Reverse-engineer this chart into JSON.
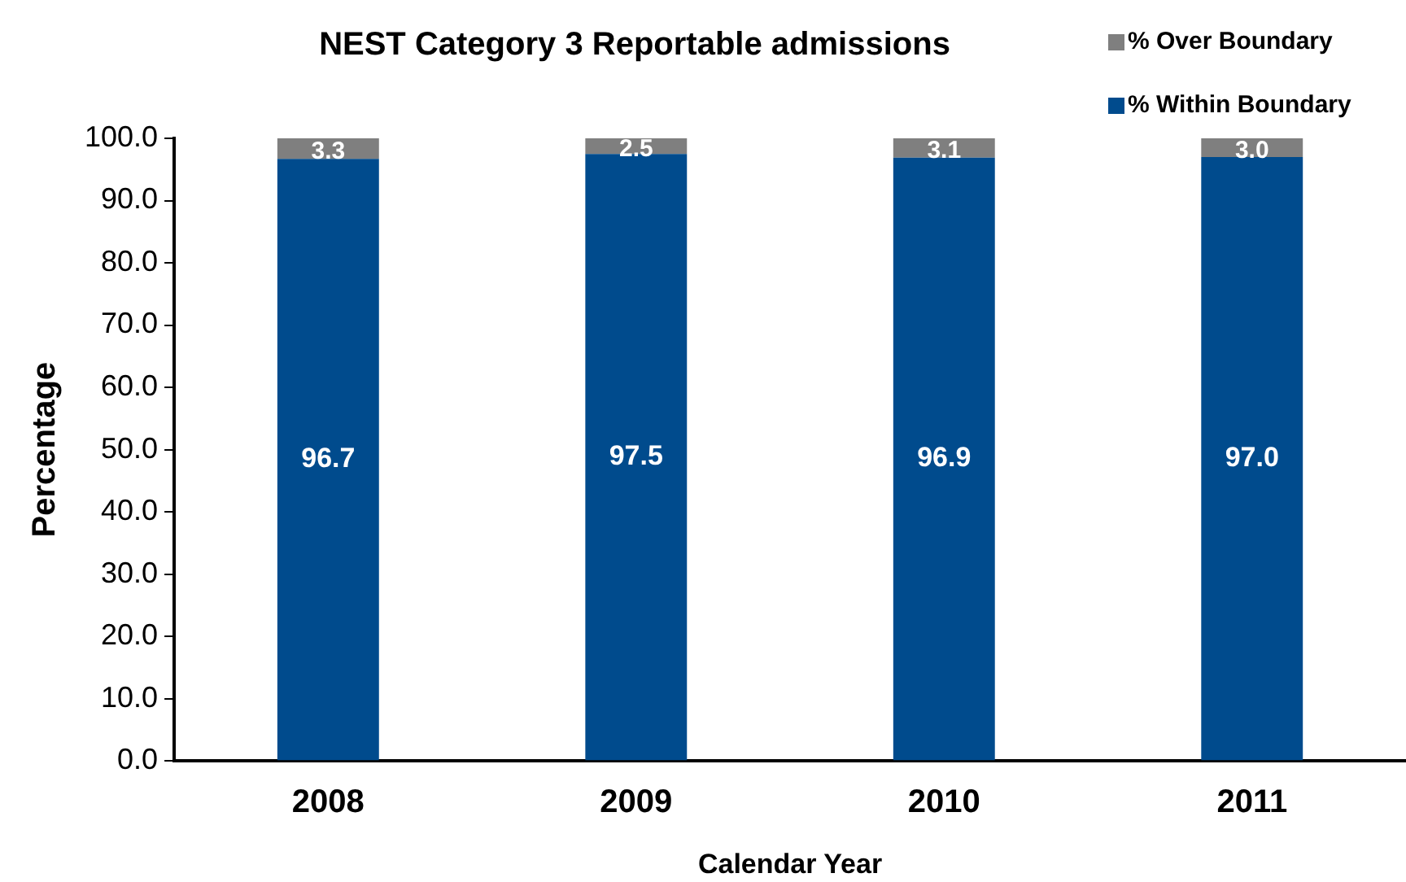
{
  "chart_data": {
    "type": "bar",
    "title": "NEST Category 3 Reportable admissions",
    "xlabel": "Calendar Year",
    "ylabel": "Percentage",
    "categories": [
      "2008",
      "2009",
      "2010",
      "2011"
    ],
    "series": [
      {
        "name": "% Within Boundary",
        "color": "#004b8d",
        "values": [
          96.7,
          97.5,
          96.9,
          97.0
        ],
        "value_labels": [
          "96.7",
          "97.5",
          "96.9",
          "97.0"
        ]
      },
      {
        "name": "% Over Boundary",
        "color": "#7f7f7f",
        "values": [
          3.3,
          2.5,
          3.1,
          3.0
        ],
        "value_labels": [
          "3.3",
          "2.5",
          "3.1",
          "3.0"
        ]
      }
    ],
    "stacked": true,
    "ylim": [
      0,
      100
    ],
    "yticks": [
      {
        "value": 0,
        "label": "0.0"
      },
      {
        "value": 10,
        "label": "10.0"
      },
      {
        "value": 20,
        "label": "20.0"
      },
      {
        "value": 30,
        "label": "30.0"
      },
      {
        "value": 40,
        "label": "40.0"
      },
      {
        "value": 50,
        "label": "50.0"
      },
      {
        "value": 60,
        "label": "60.0"
      },
      {
        "value": 70,
        "label": "70.0"
      },
      {
        "value": 80,
        "label": "80.0"
      },
      {
        "value": 90,
        "label": "90.0"
      },
      {
        "value": 100,
        "label": "100.0"
      }
    ],
    "grid": false,
    "legend": "top right"
  }
}
